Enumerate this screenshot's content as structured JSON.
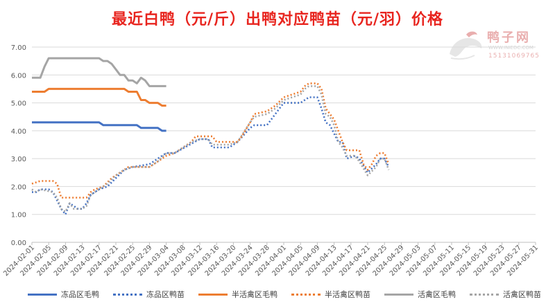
{
  "title": "最近白鸭（元/斤）出鸭对应鸭苗（元/羽）价格",
  "watermark": {
    "name": "鸭子网",
    "url": "WWW.INIEDC.COM",
    "phone": "15131069765"
  },
  "chart_data": {
    "type": "line",
    "ylim": [
      0,
      7
    ],
    "yticks": [
      "0.00",
      "1.00",
      "2.00",
      "3.00",
      "4.00",
      "5.00",
      "6.00",
      "7.00"
    ],
    "xlim": [
      "2024-02-01",
      "2024-05-31"
    ],
    "xticks": [
      "2024-02-01",
      "2024-02-05",
      "2024-02-09",
      "2024-02-13",
      "2024-02-17",
      "2024-02-21",
      "2024-02-25",
      "2024-02-29",
      "2024-03-04",
      "2024-03-08",
      "2024-03-12",
      "2024-03-16",
      "2024-03-20",
      "2024-03-24",
      "2024-03-28",
      "2024-04-01",
      "2024-04-05",
      "2024-04-09",
      "2024-04-13",
      "2024-04-17",
      "2024-04-21",
      "2024-04-25",
      "2024-04-29",
      "2024-05-03",
      "2024-05-07",
      "2024-05-11",
      "2024-05-15",
      "2024-05-19",
      "2024-05-23",
      "2024-05-27",
      "2024-05-31"
    ],
    "grid": true,
    "legend": "bottom",
    "series": [
      {
        "name": "冻品区毛鸭",
        "color": "#4472c4",
        "style": "solid",
        "points": [
          [
            "2024-02-01",
            4.3
          ],
          [
            "2024-02-17",
            4.3
          ],
          [
            "2024-02-18",
            4.2
          ],
          [
            "2024-02-26",
            4.2
          ],
          [
            "2024-02-27",
            4.1
          ],
          [
            "2024-03-02",
            4.1
          ],
          [
            "2024-03-03",
            4.0
          ],
          [
            "2024-03-04",
            4.0
          ]
        ]
      },
      {
        "name": "冻品区鸭苗",
        "color": "#4472c4",
        "style": "dotted",
        "points": [
          [
            "2024-02-01",
            1.8
          ],
          [
            "2024-02-02",
            1.8
          ],
          [
            "2024-02-03",
            1.9
          ],
          [
            "2024-02-05",
            1.9
          ],
          [
            "2024-02-06",
            1.8
          ],
          [
            "2024-02-07",
            1.5
          ],
          [
            "2024-02-08",
            1.2
          ],
          [
            "2024-02-09",
            1.0
          ],
          [
            "2024-02-10",
            1.4
          ],
          [
            "2024-02-11",
            1.3
          ],
          [
            "2024-02-12",
            1.2
          ],
          [
            "2024-02-13",
            1.2
          ],
          [
            "2024-02-14",
            1.4
          ],
          [
            "2024-02-15",
            1.7
          ],
          [
            "2024-02-16",
            1.8
          ],
          [
            "2024-02-17",
            1.9
          ],
          [
            "2024-02-19",
            2.0
          ],
          [
            "2024-02-21",
            2.3
          ],
          [
            "2024-02-23",
            2.6
          ],
          [
            "2024-02-25",
            2.7
          ],
          [
            "2024-02-29",
            2.8
          ],
          [
            "2024-03-02",
            3.0
          ],
          [
            "2024-03-04",
            3.2
          ],
          [
            "2024-03-06",
            3.2
          ],
          [
            "2024-03-12",
            3.7
          ],
          [
            "2024-03-14",
            3.7
          ],
          [
            "2024-03-15",
            3.4
          ],
          [
            "2024-03-19",
            3.4
          ],
          [
            "2024-03-21",
            3.6
          ],
          [
            "2024-03-24",
            4.1
          ],
          [
            "2024-03-25",
            4.2
          ],
          [
            "2024-03-28",
            4.2
          ],
          [
            "2024-03-30",
            4.6
          ],
          [
            "2024-03-31",
            4.8
          ],
          [
            "2024-04-01",
            5.0
          ],
          [
            "2024-04-05",
            5.0
          ],
          [
            "2024-04-06",
            5.1
          ],
          [
            "2024-04-07",
            5.2
          ],
          [
            "2024-04-09",
            5.2
          ],
          [
            "2024-04-10",
            4.8
          ],
          [
            "2024-04-11",
            4.3
          ],
          [
            "2024-04-12",
            4.2
          ],
          [
            "2024-04-14",
            3.6
          ],
          [
            "2024-04-15",
            3.6
          ],
          [
            "2024-04-16",
            3.0
          ],
          [
            "2024-04-18",
            3.1
          ],
          [
            "2024-04-19",
            3.0
          ],
          [
            "2024-04-21",
            2.5
          ],
          [
            "2024-04-23",
            2.8
          ],
          [
            "2024-04-24",
            3.0
          ],
          [
            "2024-04-25",
            3.0
          ],
          [
            "2024-04-26",
            2.7
          ]
        ]
      },
      {
        "name": "半活禽区毛鸭",
        "color": "#ed7d31",
        "style": "solid",
        "points": [
          [
            "2024-02-01",
            5.4
          ],
          [
            "2024-02-04",
            5.4
          ],
          [
            "2024-02-05",
            5.5
          ],
          [
            "2024-02-23",
            5.5
          ],
          [
            "2024-02-24",
            5.4
          ],
          [
            "2024-02-26",
            5.4
          ],
          [
            "2024-02-27",
            5.1
          ],
          [
            "2024-02-28",
            5.1
          ],
          [
            "2024-02-29",
            5.0
          ],
          [
            "2024-03-02",
            5.0
          ],
          [
            "2024-03-03",
            4.9
          ],
          [
            "2024-03-04",
            4.9
          ]
        ]
      },
      {
        "name": "半活禽区鸭苗",
        "color": "#ed7d31",
        "style": "dotted",
        "points": [
          [
            "2024-02-01",
            2.1
          ],
          [
            "2024-02-03",
            2.2
          ],
          [
            "2024-02-06",
            2.2
          ],
          [
            "2024-02-07",
            2.1
          ],
          [
            "2024-02-08",
            1.6
          ],
          [
            "2024-02-14",
            1.6
          ],
          [
            "2024-02-15",
            1.8
          ],
          [
            "2024-02-16",
            1.9
          ],
          [
            "2024-02-18",
            2.0
          ],
          [
            "2024-02-20",
            2.3
          ],
          [
            "2024-02-22",
            2.5
          ],
          [
            "2024-02-24",
            2.7
          ],
          [
            "2024-02-29",
            2.7
          ],
          [
            "2024-03-02",
            2.9
          ],
          [
            "2024-03-04",
            3.1
          ],
          [
            "2024-03-06",
            3.2
          ],
          [
            "2024-03-10",
            3.6
          ],
          [
            "2024-03-11",
            3.8
          ],
          [
            "2024-03-15",
            3.8
          ],
          [
            "2024-03-16",
            3.6
          ],
          [
            "2024-03-21",
            3.6
          ],
          [
            "2024-03-22",
            3.8
          ],
          [
            "2024-03-24",
            4.3
          ],
          [
            "2024-03-25",
            4.6
          ],
          [
            "2024-03-28",
            4.7
          ],
          [
            "2024-03-30",
            4.9
          ],
          [
            "2024-04-01",
            5.2
          ],
          [
            "2024-04-03",
            5.3
          ],
          [
            "2024-04-05",
            5.4
          ],
          [
            "2024-04-06",
            5.6
          ],
          [
            "2024-04-07",
            5.7
          ],
          [
            "2024-04-09",
            5.7
          ],
          [
            "2024-04-10",
            5.5
          ],
          [
            "2024-04-11",
            4.8
          ],
          [
            "2024-04-12",
            4.6
          ],
          [
            "2024-04-13",
            4.4
          ],
          [
            "2024-04-14",
            4.0
          ],
          [
            "2024-04-15",
            3.6
          ],
          [
            "2024-04-16",
            3.3
          ],
          [
            "2024-04-19",
            3.3
          ],
          [
            "2024-04-20",
            2.8
          ],
          [
            "2024-04-21",
            2.6
          ],
          [
            "2024-04-22",
            2.8
          ],
          [
            "2024-04-23",
            3.1
          ],
          [
            "2024-04-24",
            3.2
          ],
          [
            "2024-04-25",
            3.2
          ],
          [
            "2024-04-26",
            2.8
          ]
        ]
      },
      {
        "name": "活禽区毛鸭",
        "color": "#a5a5a5",
        "style": "solid",
        "points": [
          [
            "2024-02-01",
            5.9
          ],
          [
            "2024-02-03",
            5.9
          ],
          [
            "2024-02-04",
            6.3
          ],
          [
            "2024-02-05",
            6.6
          ],
          [
            "2024-02-17",
            6.6
          ],
          [
            "2024-02-18",
            6.5
          ],
          [
            "2024-02-19",
            6.5
          ],
          [
            "2024-02-20",
            6.4
          ],
          [
            "2024-02-21",
            6.2
          ],
          [
            "2024-02-22",
            6.0
          ],
          [
            "2024-02-23",
            6.0
          ],
          [
            "2024-02-24",
            5.8
          ],
          [
            "2024-02-25",
            5.8
          ],
          [
            "2024-02-26",
            5.7
          ],
          [
            "2024-02-27",
            5.9
          ],
          [
            "2024-02-28",
            5.8
          ],
          [
            "2024-02-29",
            5.6
          ],
          [
            "2024-03-04",
            5.6
          ]
        ]
      },
      {
        "name": "活禽区鸭苗",
        "color": "#a5a5a5",
        "style": "dotted",
        "points": [
          [
            "2024-02-01",
            1.9
          ],
          [
            "2024-02-02",
            1.8
          ],
          [
            "2024-02-03",
            1.9
          ],
          [
            "2024-02-06",
            1.8
          ],
          [
            "2024-02-07",
            1.6
          ],
          [
            "2024-02-08",
            1.2
          ],
          [
            "2024-02-09",
            1.1
          ],
          [
            "2024-02-10",
            1.4
          ],
          [
            "2024-02-11",
            1.2
          ],
          [
            "2024-02-12",
            1.2
          ],
          [
            "2024-02-13",
            1.2
          ],
          [
            "2024-02-14",
            1.3
          ],
          [
            "2024-02-15",
            1.7
          ],
          [
            "2024-02-17",
            1.9
          ],
          [
            "2024-02-19",
            2.1
          ],
          [
            "2024-02-21",
            2.4
          ],
          [
            "2024-02-23",
            2.6
          ],
          [
            "2024-02-25",
            2.7
          ],
          [
            "2024-02-29",
            2.7
          ],
          [
            "2024-03-02",
            2.9
          ],
          [
            "2024-03-04",
            3.2
          ],
          [
            "2024-03-06",
            3.2
          ],
          [
            "2024-03-10",
            3.6
          ],
          [
            "2024-03-12",
            3.7
          ],
          [
            "2024-03-14",
            3.7
          ],
          [
            "2024-03-15",
            3.5
          ],
          [
            "2024-03-19",
            3.5
          ],
          [
            "2024-03-21",
            3.6
          ],
          [
            "2024-03-24",
            4.3
          ],
          [
            "2024-03-25",
            4.5
          ],
          [
            "2024-03-28",
            4.6
          ],
          [
            "2024-03-30",
            4.8
          ],
          [
            "2024-04-01",
            5.1
          ],
          [
            "2024-04-03",
            5.2
          ],
          [
            "2024-04-05",
            5.3
          ],
          [
            "2024-04-06",
            5.5
          ],
          [
            "2024-04-07",
            5.6
          ],
          [
            "2024-04-09",
            5.6
          ],
          [
            "2024-04-10",
            5.3
          ],
          [
            "2024-04-11",
            4.6
          ],
          [
            "2024-04-12",
            4.5
          ],
          [
            "2024-04-13",
            4.2
          ],
          [
            "2024-04-14",
            3.6
          ],
          [
            "2024-04-15",
            3.4
          ],
          [
            "2024-04-16",
            3.1
          ],
          [
            "2024-04-18",
            3.1
          ],
          [
            "2024-04-19",
            2.9
          ],
          [
            "2024-04-21",
            2.4
          ],
          [
            "2024-04-23",
            2.7
          ],
          [
            "2024-04-24",
            3.0
          ],
          [
            "2024-04-25",
            3.0
          ],
          [
            "2024-04-26",
            2.6
          ]
        ]
      }
    ]
  }
}
